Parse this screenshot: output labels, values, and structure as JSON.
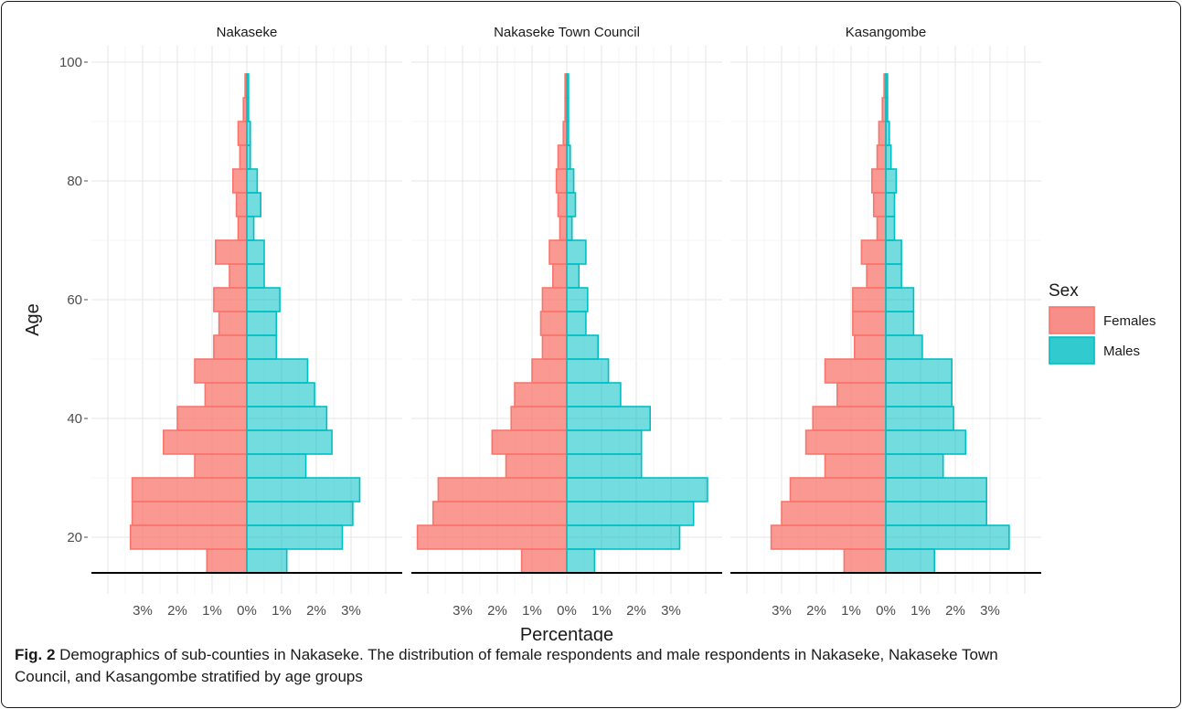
{
  "chart_data": {
    "type": "bar",
    "orientation": "horizontal",
    "xlabel": "Percentage",
    "ylabel": "Age",
    "y_ticks": [
      20,
      40,
      60,
      80,
      100
    ],
    "ylim": [
      14,
      100
    ],
    "age_bin_width": 4,
    "x_tick_labels": [
      "3%",
      "2%",
      "1%",
      "0%",
      "1%",
      "2%",
      "3%"
    ],
    "x_tick_values": [
      -3,
      -2,
      -1,
      0,
      1,
      2,
      3
    ],
    "xlim": [
      -4.5,
      4.5
    ],
    "legend": {
      "title": "Sex",
      "placement": "right",
      "entries": [
        {
          "label": "Females",
          "color": "#F8766D"
        },
        {
          "label": "Males",
          "color": "#00BFC4"
        }
      ]
    },
    "age_bins_start": [
      14,
      18,
      22,
      26,
      30,
      34,
      38,
      42,
      46,
      50,
      54,
      58,
      62,
      66,
      70,
      74,
      78,
      82,
      86,
      90,
      94
    ],
    "panels": [
      {
        "title": "Nakaseke",
        "females": [
          1.15,
          3.35,
          3.3,
          3.3,
          1.5,
          2.4,
          2.0,
          1.2,
          1.5,
          0.95,
          0.8,
          0.95,
          0.5,
          0.9,
          0.25,
          0.3,
          0.4,
          0.2,
          0.25,
          0.1,
          0.05
        ],
        "males": [
          1.15,
          2.75,
          3.05,
          3.25,
          1.7,
          2.45,
          2.3,
          1.95,
          1.75,
          0.85,
          0.85,
          0.95,
          0.5,
          0.5,
          0.2,
          0.4,
          0.3,
          0.1,
          0.1,
          0.05,
          0.05
        ]
      },
      {
        "title": "Nakaseke Town Council",
        "females": [
          1.3,
          4.3,
          3.85,
          3.7,
          1.75,
          2.15,
          1.6,
          1.5,
          1.0,
          0.7,
          0.75,
          0.7,
          0.4,
          0.5,
          0.2,
          0.25,
          0.3,
          0.25,
          0.1,
          0.05,
          0.05
        ],
        "males": [
          0.8,
          3.25,
          3.65,
          4.05,
          2.15,
          2.15,
          2.4,
          1.55,
          1.2,
          0.9,
          0.55,
          0.6,
          0.35,
          0.55,
          0.15,
          0.25,
          0.2,
          0.1,
          0.05,
          0.05,
          0.05
        ]
      },
      {
        "title": "Kasangombe",
        "females": [
          1.2,
          3.3,
          3.0,
          2.75,
          1.75,
          2.3,
          2.1,
          1.4,
          1.75,
          0.9,
          0.95,
          0.95,
          0.55,
          0.7,
          0.25,
          0.35,
          0.4,
          0.25,
          0.2,
          0.1,
          0.05
        ],
        "males": [
          1.4,
          3.55,
          2.9,
          2.9,
          1.65,
          2.3,
          1.95,
          1.9,
          1.9,
          1.05,
          0.8,
          0.8,
          0.45,
          0.45,
          0.25,
          0.25,
          0.3,
          0.15,
          0.1,
          0.05,
          0.05
        ]
      }
    ]
  },
  "caption": {
    "label": "Fig. 2",
    "line1": " Demographics of sub-counties in Nakaseke. The distribution of female respondents and male respondents in Nakaseke, Nakaseke Town",
    "line2": "Council, and Kasangombe stratified by age groups"
  }
}
